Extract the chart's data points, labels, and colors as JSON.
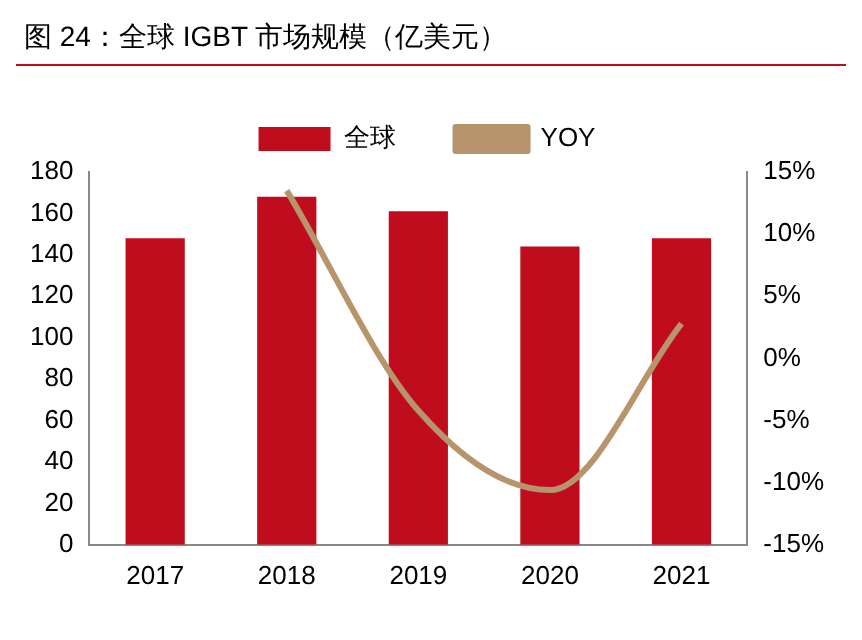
{
  "chart_data": {
    "type": "bar",
    "title": "图 24：全球 IGBT 市场规模（亿美元）",
    "categories": [
      "2017",
      "2018",
      "2019",
      "2020",
      "2021"
    ],
    "series": [
      {
        "name": "全球",
        "color": "#c00d1e",
        "values": [
          148,
          168,
          161,
          144,
          148
        ]
      },
      {
        "name": "YOY",
        "type": "line",
        "axis": "y2",
        "color": "#b8946c",
        "values": [
          null,
          13.5,
          -4.2,
          -10.6,
          2.8
        ]
      }
    ],
    "ylim": [
      0,
      180
    ],
    "yticks": [
      0,
      20,
      40,
      60,
      80,
      100,
      120,
      140,
      160,
      180
    ],
    "y2lim": [
      -15,
      15
    ],
    "y2ticks": [
      {
        "value": -15,
        "label": "-15%"
      },
      {
        "value": -10,
        "label": "-10%"
      },
      {
        "value": -5,
        "label": "-5%"
      },
      {
        "value": 0,
        "label": "0%"
      },
      {
        "value": 5,
        "label": "5%"
      },
      {
        "value": 10,
        "label": "10%"
      },
      {
        "value": 15,
        "label": "15%"
      }
    ],
    "grid": false,
    "legend": "top",
    "marker": "none"
  }
}
